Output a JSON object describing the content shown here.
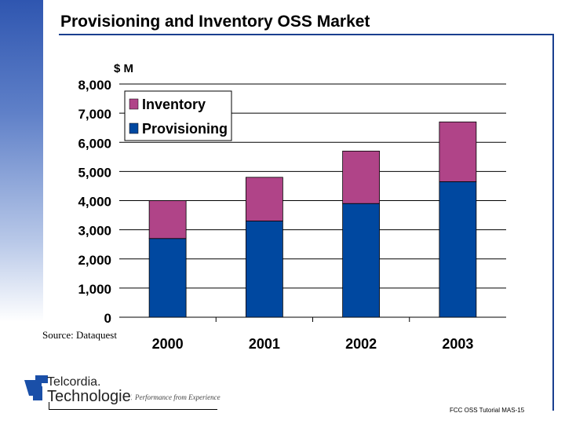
{
  "slide": {
    "title": "Provisioning and Inventory OSS Market",
    "source": "Source: Dataquest",
    "footer": "FCC OSS Tutorial MAS-15",
    "logo_text": [
      "Telcordia.",
      "Technologies"
    ],
    "tagline": "Performance from Experience"
  },
  "chart_data": {
    "type": "bar",
    "stacked": true,
    "ylabel": "$ M",
    "categories": [
      "2000",
      "2001",
      "2002",
      "2003"
    ],
    "ylim": [
      0,
      8000
    ],
    "yticks": [
      "0",
      "1,000",
      "2,000",
      "3,000",
      "4,000",
      "5,000",
      "6,000",
      "7,000",
      "8,000"
    ],
    "grid": true,
    "legend_placement": "top-left",
    "series": [
      {
        "name": "Provisioning",
        "color": "#0048a0",
        "values": [
          2700,
          3300,
          3900,
          4650
        ]
      },
      {
        "name": "Inventory",
        "color": "#b04488",
        "values": [
          1300,
          1500,
          1800,
          2050
        ]
      }
    ]
  }
}
